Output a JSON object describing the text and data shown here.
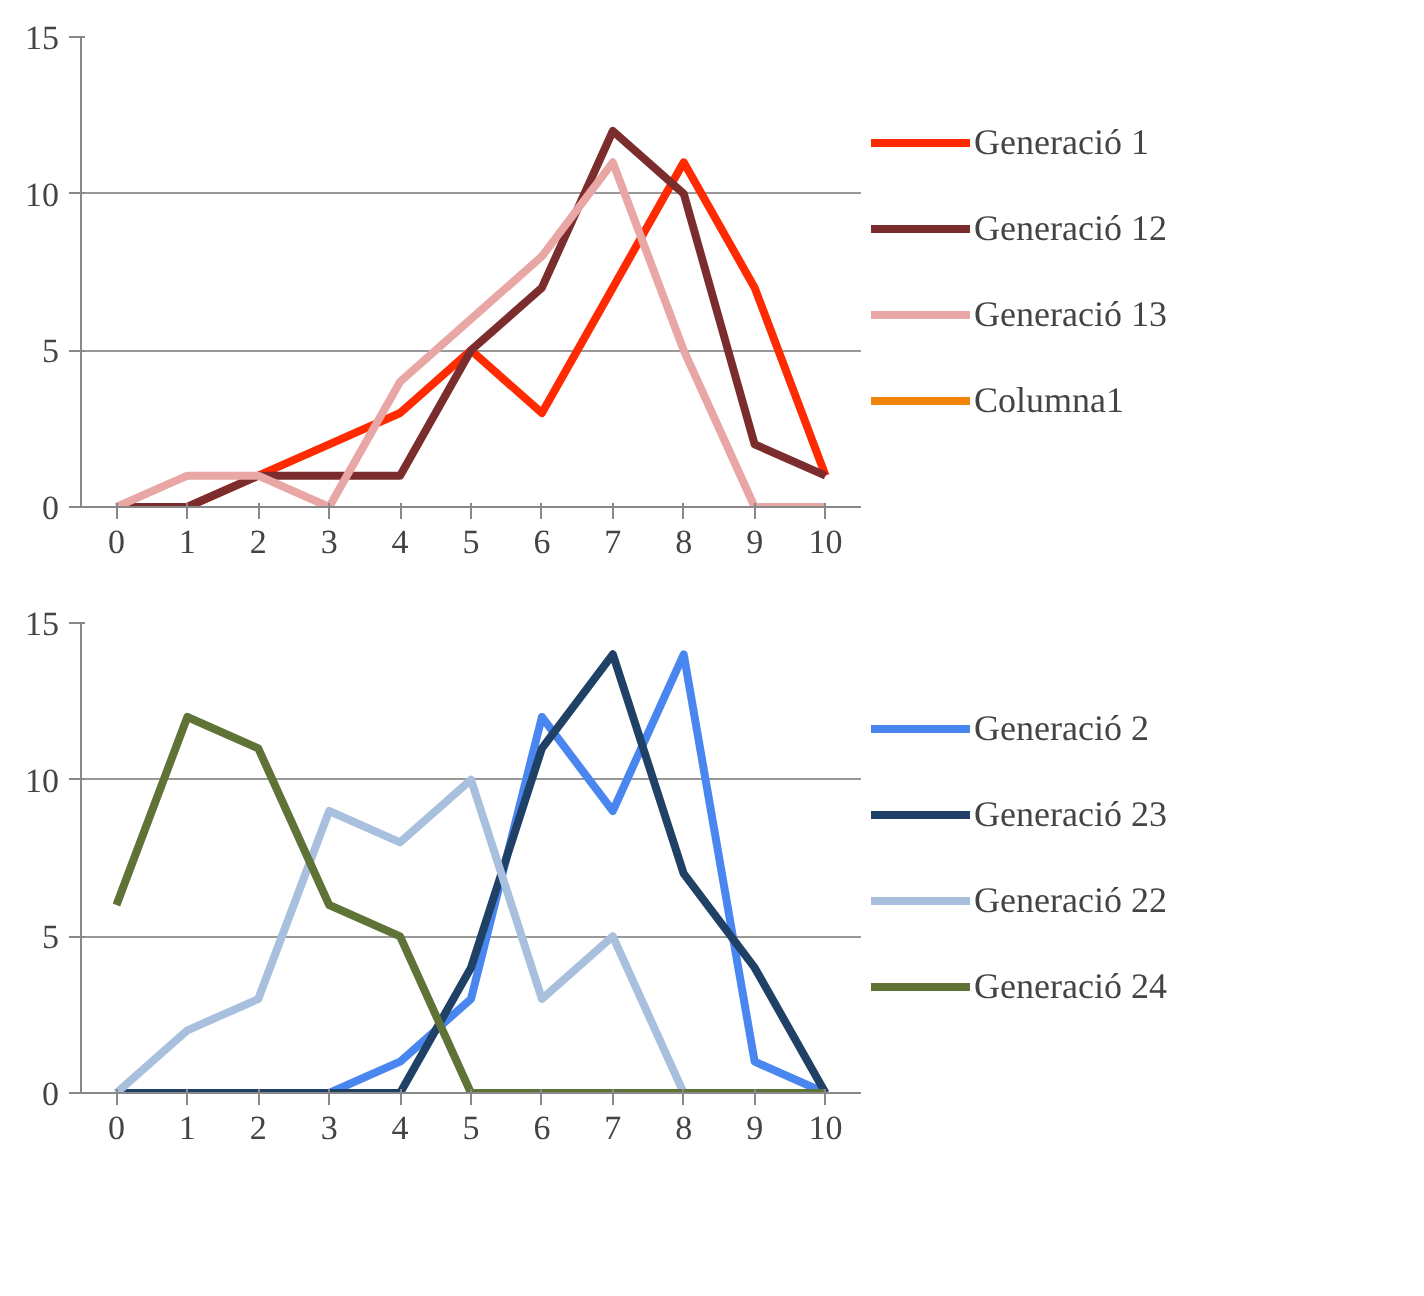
{
  "chart_data": [
    {
      "type": "line",
      "categories": [
        "0",
        "1",
        "2",
        "3",
        "4",
        "5",
        "6",
        "7",
        "8",
        "9",
        "10"
      ],
      "ylim": [
        0,
        15
      ],
      "yticks": [
        0,
        5,
        10,
        15
      ],
      "grid": "y",
      "legend": "right",
      "marker": "none",
      "line_style": "solid",
      "series": [
        {
          "name": "Generació 1",
          "color": "#ff2a00",
          "values": [
            0,
            0,
            1,
            2,
            3,
            5,
            3,
            7,
            11,
            7,
            1
          ]
        },
        {
          "name": "Generació 12",
          "color": "#7b2c2c",
          "values": [
            0,
            0,
            1,
            1,
            1,
            5,
            7,
            12,
            10,
            2,
            1
          ]
        },
        {
          "name": "Generació 13",
          "color": "#e8a6a4",
          "values": [
            0,
            1,
            1,
            0,
            4,
            6,
            8,
            11,
            5,
            0,
            0
          ]
        },
        {
          "name": "Columna1",
          "color": "#f0850a",
          "values": [
            null,
            null,
            null,
            null,
            null,
            null,
            null,
            null,
            null,
            null,
            null
          ]
        }
      ]
    },
    {
      "type": "line",
      "categories": [
        "0",
        "1",
        "2",
        "3",
        "4",
        "5",
        "6",
        "7",
        "8",
        "9",
        "10"
      ],
      "ylim": [
        0,
        15
      ],
      "yticks": [
        0,
        5,
        10,
        15
      ],
      "grid": "y",
      "legend": "right",
      "marker": "none",
      "line_style": "solid",
      "series": [
        {
          "name": "Generació 2",
          "color": "#4a86f0",
          "values": [
            0,
            0,
            0,
            0,
            1,
            3,
            12,
            9,
            14,
            1,
            0
          ]
        },
        {
          "name": "Generació 23",
          "color": "#1f4166",
          "values": [
            0,
            0,
            0,
            0,
            0,
            4,
            11,
            14,
            7,
            4,
            0
          ]
        },
        {
          "name": "Generació 22",
          "color": "#a8c0de",
          "values": [
            0,
            2,
            3,
            9,
            8,
            10,
            3,
            5,
            0,
            0,
            0
          ]
        },
        {
          "name": "Generació 24",
          "color": "#5f7336",
          "values": [
            6,
            12,
            11,
            6,
            5,
            0,
            0,
            0,
            0,
            0,
            0
          ]
        }
      ]
    }
  ]
}
